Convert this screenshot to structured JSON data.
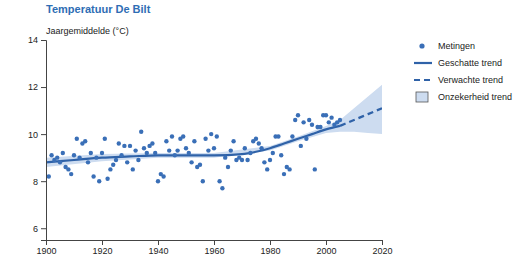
{
  "chart_data": {
    "type": "line",
    "title": "Temperatuur De Bilt",
    "y_label": "Jaargemiddelde (°C)",
    "xlim": [
      1900,
      2020
    ],
    "xticks": [
      1900,
      1920,
      1940,
      1960,
      1980,
      2000,
      2020
    ],
    "ylim": [
      5.5,
      14
    ],
    "yticks": [
      6,
      8,
      10,
      12,
      14
    ],
    "grid": false,
    "legend": "upper right",
    "series": [
      {
        "name": "Metingen",
        "type": "scatter",
        "marker": "circle",
        "color": "#3a6fb7",
        "x": [
          1901,
          1902,
          1903,
          1904,
          1905,
          1906,
          1907,
          1908,
          1909,
          1910,
          1911,
          1912,
          1913,
          1914,
          1915,
          1916,
          1917,
          1918,
          1919,
          1920,
          1921,
          1922,
          1923,
          1924,
          1925,
          1926,
          1927,
          1928,
          1929,
          1930,
          1931,
          1932,
          1933,
          1934,
          1935,
          1936,
          1937,
          1938,
          1939,
          1940,
          1941,
          1942,
          1943,
          1944,
          1945,
          1946,
          1947,
          1948,
          1949,
          1950,
          1951,
          1952,
          1953,
          1954,
          1955,
          1956,
          1957,
          1958,
          1959,
          1960,
          1961,
          1962,
          1963,
          1964,
          1965,
          1966,
          1967,
          1968,
          1969,
          1970,
          1971,
          1972,
          1973,
          1974,
          1975,
          1976,
          1977,
          1978,
          1979,
          1980,
          1981,
          1982,
          1983,
          1984,
          1985,
          1986,
          1987,
          1988,
          1989,
          1990,
          1991,
          1992,
          1993,
          1994,
          1995,
          1996,
          1997,
          1998,
          1999,
          2000,
          2001,
          2002,
          2003,
          2004,
          2005
        ],
        "values": [
          8.2,
          9.1,
          8.9,
          9.0,
          8.8,
          9.2,
          8.6,
          8.5,
          8.3,
          9.1,
          9.8,
          9.0,
          9.6,
          9.7,
          8.8,
          9.2,
          8.2,
          9.0,
          8.0,
          9.2,
          9.8,
          8.1,
          8.5,
          8.7,
          8.9,
          9.6,
          9.1,
          9.5,
          8.8,
          9.5,
          8.5,
          9.3,
          8.9,
          10.1,
          9.4,
          9.2,
          9.5,
          9.6,
          9.2,
          8.0,
          8.3,
          8.2,
          9.7,
          9.3,
          9.9,
          9.1,
          9.3,
          9.8,
          9.9,
          9.4,
          9.2,
          8.8,
          9.7,
          8.6,
          8.7,
          8.0,
          9.8,
          9.3,
          10.0,
          9.4,
          9.9,
          8.0,
          7.7,
          9.0,
          8.6,
          9.3,
          9.7,
          8.9,
          9.0,
          8.9,
          9.4,
          8.9,
          9.2,
          9.7,
          9.8,
          9.6,
          9.4,
          8.8,
          8.5,
          8.9,
          9.2,
          9.9,
          9.9,
          9.1,
          8.3,
          8.6,
          8.5,
          9.9,
          10.6,
          10.8,
          9.5,
          10.5,
          9.8,
          10.6,
          10.4,
          8.5,
          10.3,
          10.3,
          10.8,
          10.8,
          10.5,
          10.7,
          10.4,
          10.5,
          10.6
        ]
      },
      {
        "name": "Geschatte trend",
        "type": "line",
        "line_style": "solid",
        "color": "#2f62a8",
        "x": [
          1900,
          1910,
          1920,
          1930,
          1940,
          1950,
          1960,
          1970,
          1975,
          1980,
          1985,
          1990,
          1995,
          2000,
          2005
        ],
        "values": [
          8.8,
          8.9,
          9.0,
          9.05,
          9.1,
          9.1,
          9.1,
          9.15,
          9.25,
          9.4,
          9.6,
          9.8,
          10.0,
          10.2,
          10.35
        ]
      },
      {
        "name": "Verwachte trend",
        "type": "line",
        "line_style": "dashed",
        "color": "#2f62a8",
        "x": [
          2005,
          2010,
          2015,
          2020
        ],
        "values": [
          10.35,
          10.6,
          10.85,
          11.1
        ]
      },
      {
        "name": "Onzekerheid trend",
        "type": "band",
        "color": "#cddcf0",
        "x": [
          1900,
          1920,
          1940,
          1960,
          1980,
          1990,
          2000,
          2005,
          2010,
          2015,
          2020
        ],
        "lower": [
          8.6,
          8.85,
          9.0,
          9.0,
          9.3,
          9.7,
          10.05,
          10.1,
          10.1,
          10.05,
          10.0
        ],
        "upper": [
          9.0,
          9.15,
          9.2,
          9.2,
          9.5,
          9.9,
          10.35,
          10.6,
          11.1,
          11.6,
          12.1
        ]
      }
    ]
  }
}
